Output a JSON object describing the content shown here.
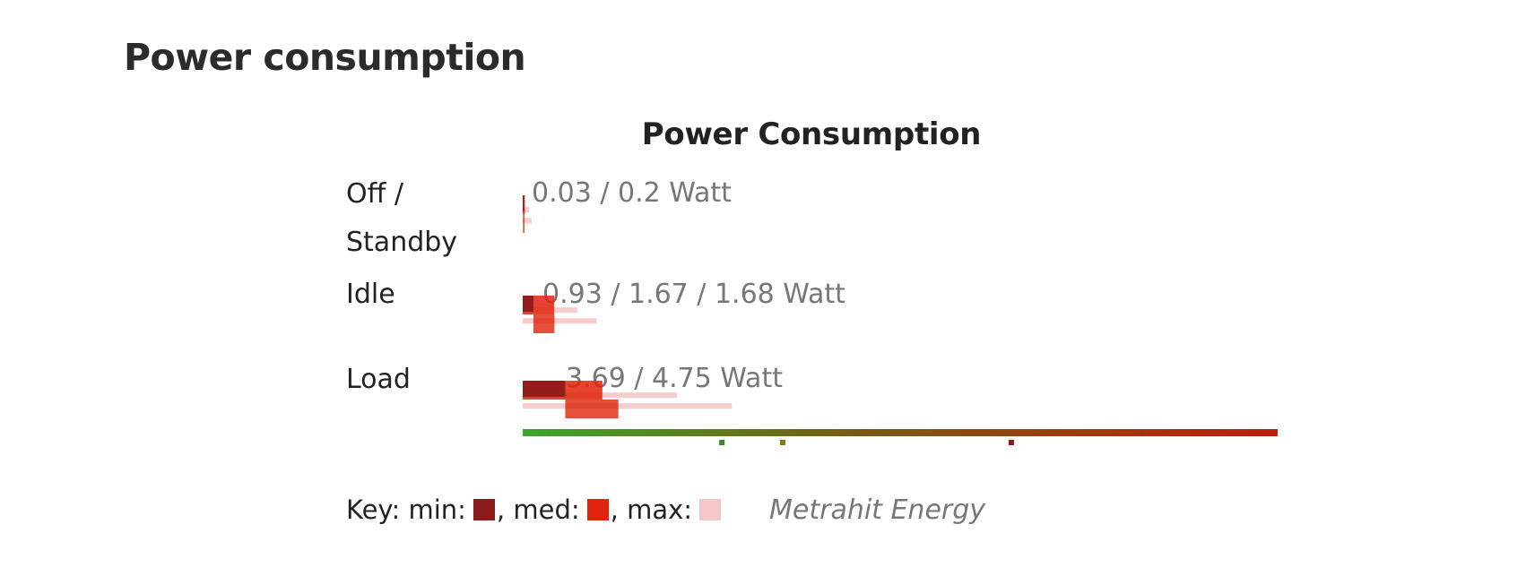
{
  "heading": "Power consumption",
  "chart_data": {
    "type": "bar",
    "title": "Power Consumption",
    "unit": "Watt",
    "categories": [
      "Off / Standby",
      "Idle",
      "Load"
    ],
    "rows": [
      {
        "label_lines": [
          "Off /",
          "Standby"
        ],
        "value_text": "0.03 / 0.2 Watt",
        "min": 0.03,
        "med": null,
        "max": 0.2
      },
      {
        "label_lines": [
          "Idle"
        ],
        "value_text": "0.93 / 1.67 / 1.68 Watt",
        "min": 0.93,
        "med": 1.67,
        "max": 1.68
      },
      {
        "label_lines": [
          "Load"
        ],
        "value_text": "3.69 / 4.75 Watt",
        "min": 3.69,
        "med": null,
        "max": 4.75
      }
    ],
    "xlim": [
      0,
      36
    ],
    "scale_markers": [
      9.5,
      12.4,
      23.3
    ],
    "colors": {
      "min": "#8b1a1a",
      "med": "#e0230b",
      "max": "#f4c8c8",
      "scale_start": "#3aa62b",
      "scale_end": "#c01c0c"
    },
    "legend": {
      "position": "bottom-left"
    }
  },
  "key": {
    "prefix": "Key: min:",
    "med": ", med:",
    "max": ", max:"
  },
  "source": "Metrahit Energy"
}
